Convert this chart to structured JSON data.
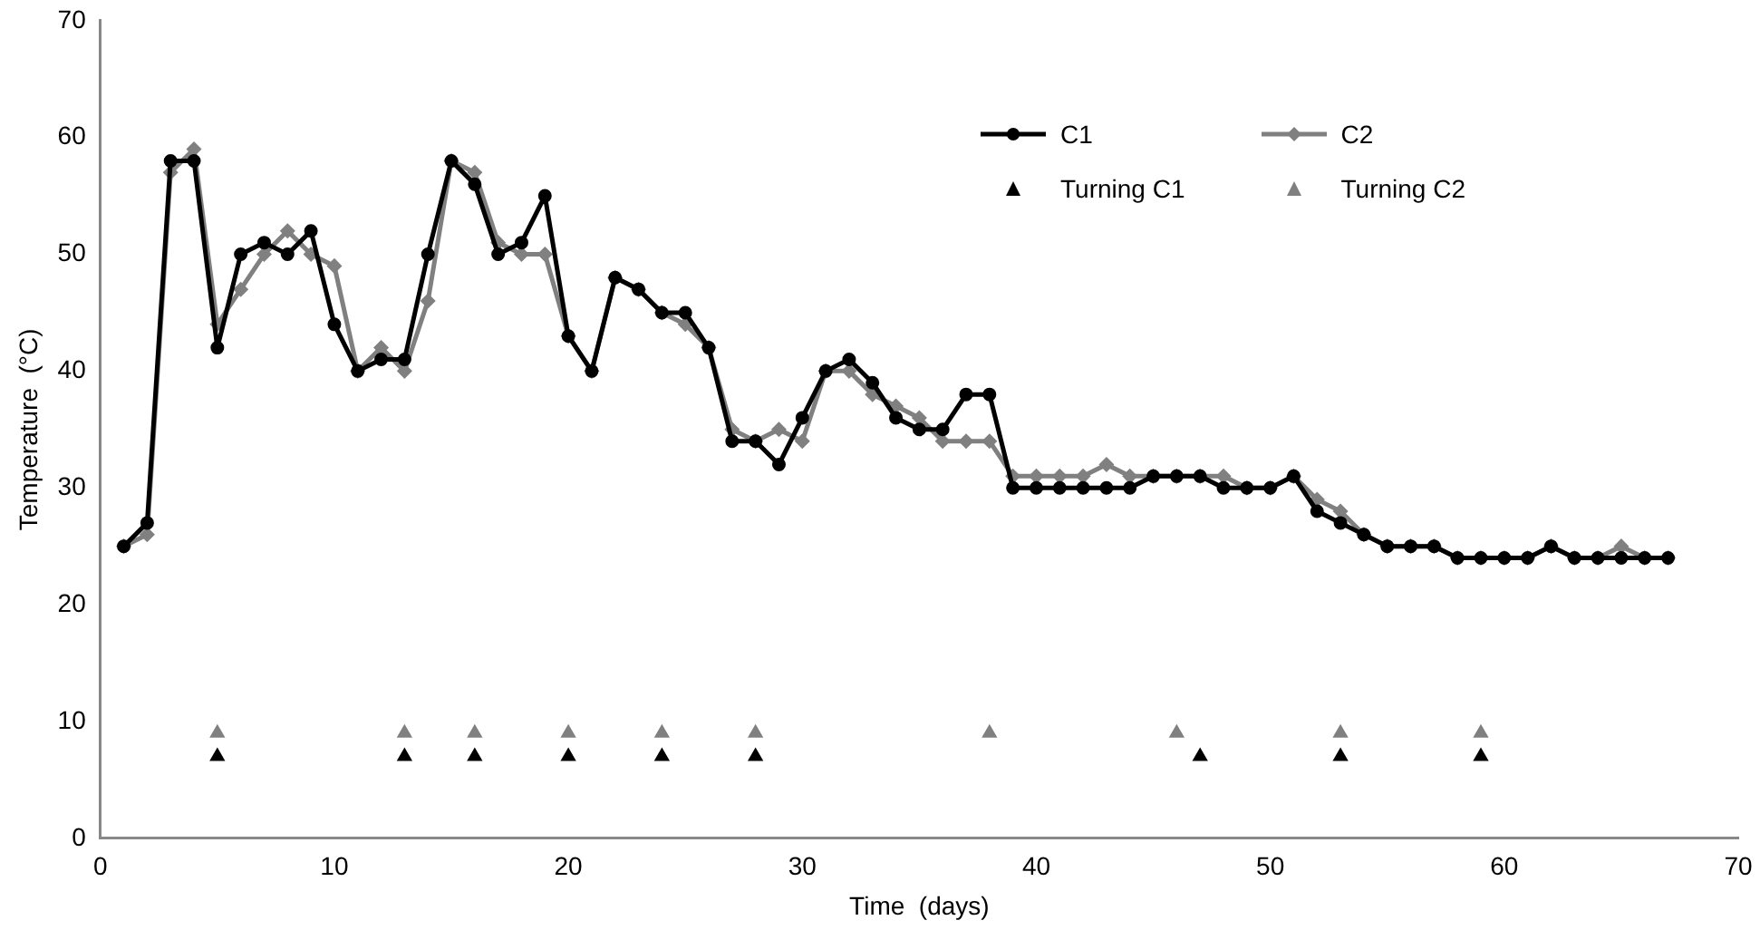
{
  "chart_data": {
    "type": "line",
    "xlabel": "Time  (days)",
    "ylabel": "Temperature  (°C)",
    "x": [
      1,
      2,
      3,
      4,
      5,
      6,
      7,
      8,
      9,
      10,
      11,
      12,
      13,
      14,
      15,
      16,
      17,
      18,
      19,
      20,
      21,
      22,
      23,
      24,
      25,
      26,
      27,
      28,
      29,
      30,
      31,
      32,
      33,
      34,
      35,
      36,
      37,
      38,
      39,
      40,
      41,
      42,
      43,
      44,
      45,
      46,
      47,
      48,
      49,
      50,
      51,
      52,
      53,
      54,
      55,
      56,
      57,
      58,
      59,
      60,
      61,
      62,
      63,
      64,
      65,
      66,
      67
    ],
    "xlim": [
      0,
      70
    ],
    "xticks": [
      0,
      10,
      20,
      30,
      40,
      50,
      60,
      70
    ],
    "ylim": [
      0,
      70
    ],
    "yticks": [
      0,
      10,
      20,
      30,
      40,
      50,
      60,
      70
    ],
    "grid": false,
    "legend": "top right",
    "series": [
      {
        "name": "C1",
        "color": "#000000",
        "marker": "circle",
        "values": [
          25,
          27,
          58,
          58,
          42,
          50,
          51,
          50,
          52,
          44,
          40,
          41,
          41,
          50,
          58,
          56,
          50,
          51,
          55,
          43,
          40,
          48,
          47,
          45,
          45,
          42,
          34,
          34,
          32,
          36,
          40,
          41,
          39,
          36,
          35,
          35,
          38,
          38,
          30,
          30,
          30,
          30,
          30,
          30,
          31,
          31,
          31,
          30,
          30,
          30,
          31,
          28,
          27,
          26,
          25,
          25,
          25,
          24,
          24,
          24,
          24,
          25,
          24,
          24,
          24,
          24,
          24
        ]
      },
      {
        "name": "C2",
        "color": "#808080",
        "marker": "diamond",
        "values": [
          25,
          26,
          57,
          59,
          44,
          47,
          50,
          52,
          50,
          49,
          40,
          42,
          40,
          46,
          58,
          57,
          51,
          50,
          50,
          43,
          40,
          48,
          47,
          45,
          44,
          42,
          35,
          34,
          35,
          34,
          40,
          40,
          38,
          37,
          36,
          34,
          34,
          34,
          31,
          31,
          31,
          31,
          32,
          31,
          31,
          31,
          31,
          31,
          30,
          30,
          31,
          29,
          28,
          26,
          25,
          25,
          25,
          24,
          24,
          24,
          24,
          25,
          24,
          24,
          25,
          24,
          24
        ]
      },
      {
        "name": "Turning C1",
        "type": "scatter",
        "color": "#000000",
        "marker": "triangle",
        "x": [
          5,
          13,
          16,
          20,
          24,
          28,
          47,
          53,
          59
        ],
        "values": [
          7,
          7,
          7,
          7,
          7,
          7,
          7,
          7,
          7
        ]
      },
      {
        "name": "Turning C2",
        "type": "scatter",
        "color": "#808080",
        "marker": "triangle",
        "x": [
          5,
          13,
          16,
          20,
          24,
          28,
          38,
          46,
          53,
          59
        ],
        "values": [
          9,
          9,
          9,
          9,
          9,
          9,
          9,
          9,
          9,
          9
        ]
      }
    ]
  }
}
